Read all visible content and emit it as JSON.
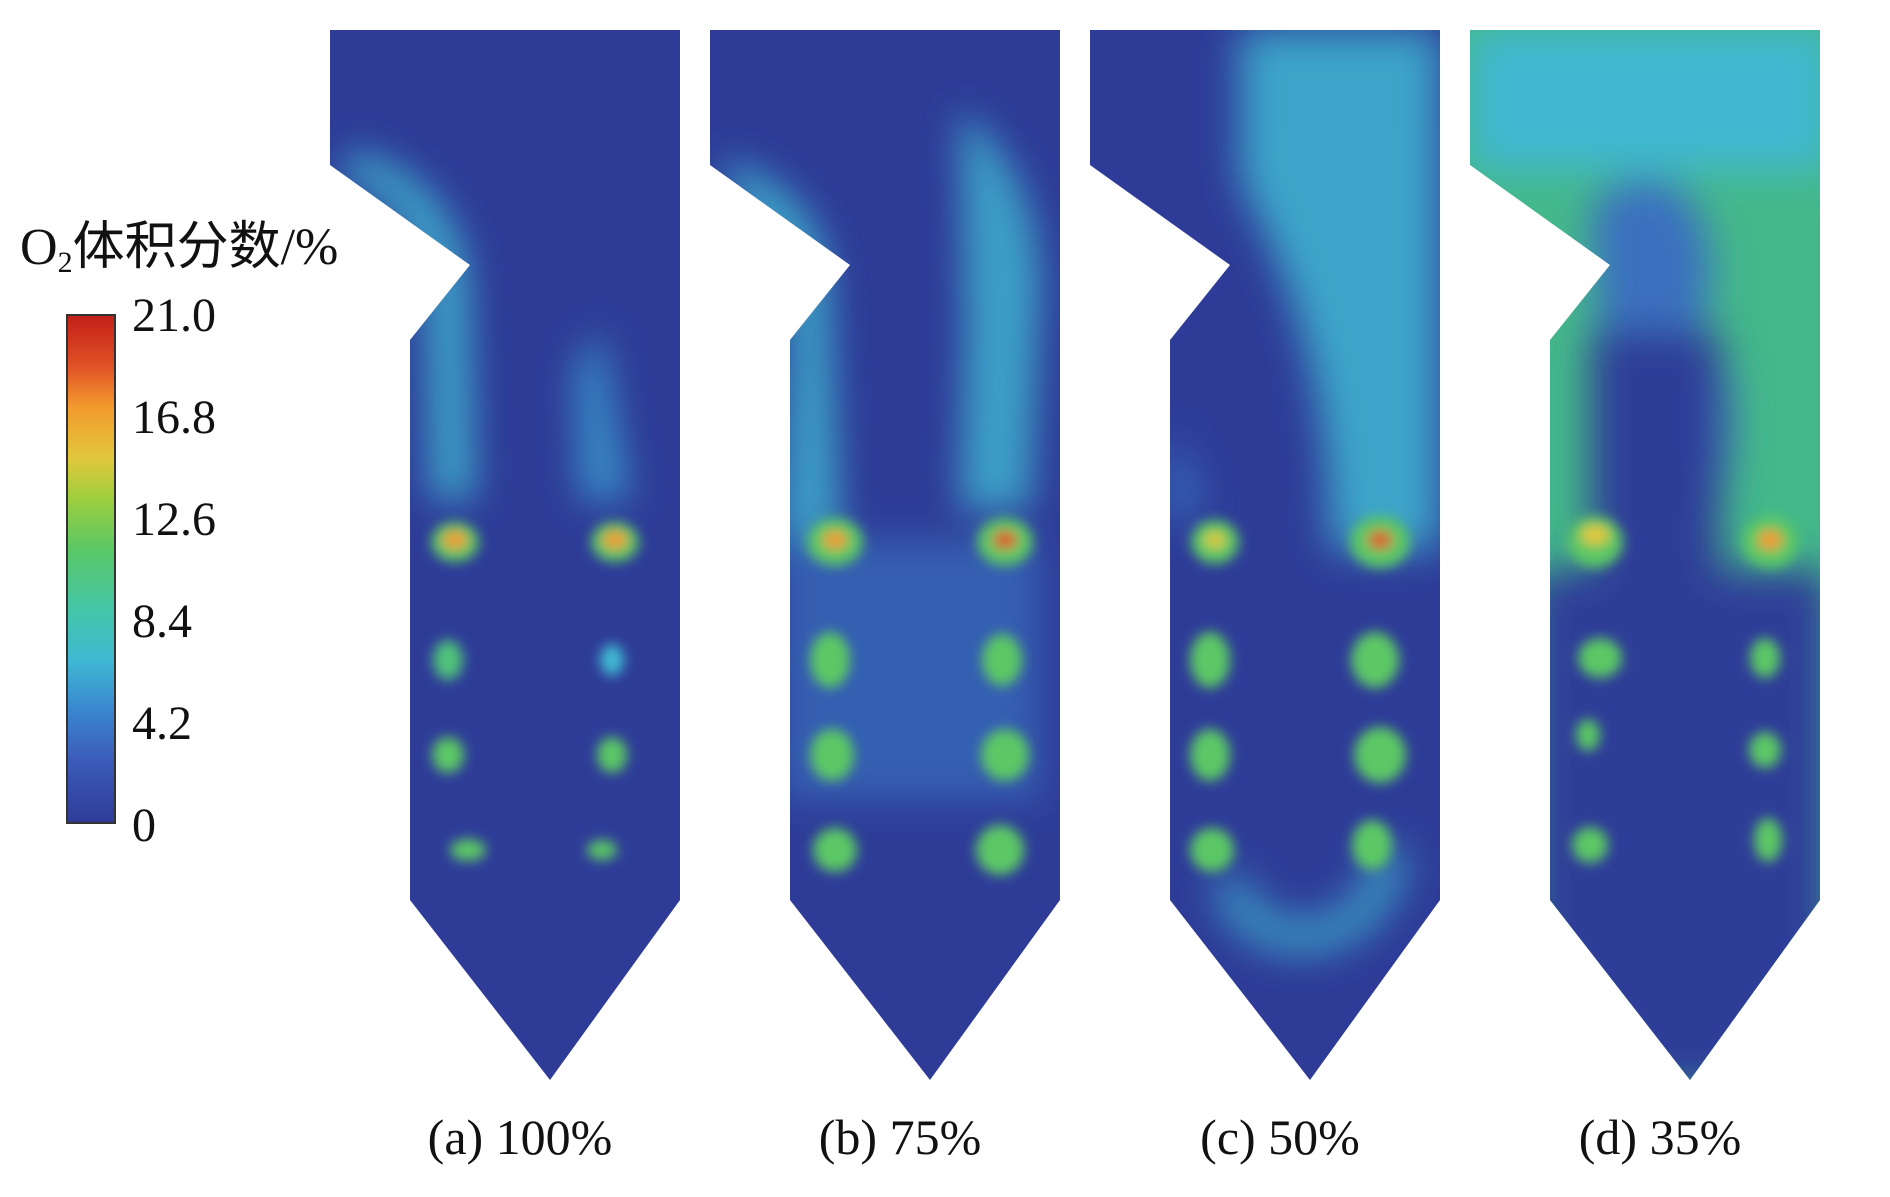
{
  "legend": {
    "title_main": "O",
    "title_sub": "2",
    "title_rest": "体积分数/%",
    "ticks": [
      "21.0",
      "16.8",
      "12.6",
      "8.4",
      "4.2",
      "0"
    ]
  },
  "panels": [
    {
      "label": "(a) 100%"
    },
    {
      "label": "(b) 75%"
    },
    {
      "label": "(c) 50%"
    },
    {
      "label": "(d) 35%"
    }
  ],
  "colors": {
    "low": "#2e3c98",
    "mid": "#44c6a8",
    "high": "#c21f18"
  }
}
